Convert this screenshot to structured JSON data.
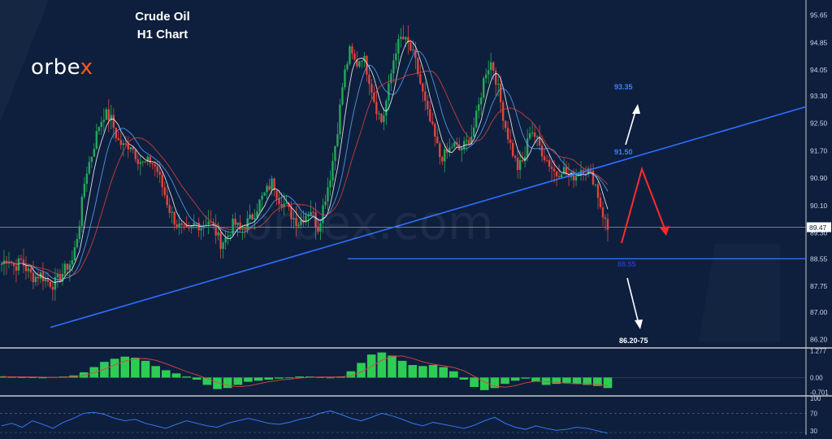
{
  "header": {
    "title_line1": "Crude Oil",
    "title_line2": "H1 Chart",
    "brand_prefix": "orbe",
    "brand_x": "x",
    "watermark": "orbex.com"
  },
  "annotations": {
    "target_up": "93.35",
    "resistance": "91.50",
    "support": "88.55",
    "target_down": "86.20-75"
  },
  "colors": {
    "background": "#0e1f3d",
    "bull": "#26a65b",
    "bear": "#e0443e",
    "trendline": "#2f6fff",
    "arrow_red": "#ff2b2b",
    "arrow_white": "#ffffff",
    "histogram": "#2ecc55",
    "oscillator": "#3a7fff"
  },
  "chart_data": {
    "type": "candlestick",
    "title": "Crude Oil H1 Chart",
    "ylim": [
      86.0,
      95.9
    ],
    "yticks": [
      "95.65",
      "94.85",
      "94.05",
      "93.30",
      "92.50",
      "91.70",
      "90.90",
      "90.10",
      "89.30",
      "88.55",
      "87.75",
      "87.00",
      "86.20"
    ],
    "last_price": "89.47",
    "candle_count": 250,
    "closes": [
      88.4,
      88.6,
      88.3,
      88.5,
      88.2,
      88.0,
      88.1,
      87.9,
      87.8,
      88.0,
      88.3,
      88.5,
      89.5,
      91.0,
      91.6,
      92.4,
      92.8,
      92.6,
      92.0,
      91.8,
      91.9,
      91.5,
      91.3,
      91.4,
      91.2,
      90.6,
      90.0,
      89.6,
      89.4,
      89.3,
      89.6,
      89.5,
      89.7,
      89.4,
      89.0,
      89.2,
      89.6,
      89.4,
      89.6,
      89.8,
      90.2,
      90.5,
      90.8,
      90.3,
      90.1,
      89.8,
      89.6,
      89.8,
      90.0,
      89.4,
      90.2,
      91.0,
      92.2,
      93.8,
      94.6,
      94.2,
      94.5,
      93.8,
      93.0,
      92.5,
      93.5,
      94.6,
      95.0,
      94.8,
      94.4,
      93.6,
      92.8,
      92.2,
      91.5,
      91.6,
      91.9,
      91.7,
      91.9,
      92.2,
      93.0,
      94.0,
      94.3,
      93.5,
      92.5,
      91.8,
      91.2,
      91.4,
      92.4,
      92.0,
      91.6,
      91.3,
      91.0,
      91.2,
      90.9,
      91.0,
      91.2,
      91.1,
      90.8,
      90.0,
      89.4
    ],
    "moving_averages": [
      {
        "color": "#ffffff"
      },
      {
        "color": "#5fa8ff"
      },
      {
        "color": "#e0443e"
      }
    ],
    "trendline": {
      "from": [
        0,
        86.55
      ],
      "to": [
        282,
        92.98
      ]
    },
    "support_level": 88.55,
    "macd": {
      "yticks": [
        "1.277",
        "0.00",
        "-0.701"
      ],
      "ylim": [
        -0.8,
        1.3
      ],
      "values": [
        0.05,
        0.03,
        0.02,
        0.01,
        0.0,
        0.02,
        0.05,
        0.1,
        0.25,
        0.5,
        0.75,
        0.9,
        1.0,
        0.95,
        0.8,
        0.55,
        0.35,
        0.2,
        0.05,
        -0.1,
        -0.35,
        -0.55,
        -0.5,
        -0.35,
        -0.2,
        -0.15,
        -0.1,
        -0.05,
        0.0,
        0.05,
        0.05,
        0.02,
        0.0,
        0.05,
        0.3,
        0.7,
        1.1,
        1.2,
        1.05,
        0.8,
        0.6,
        0.55,
        0.6,
        0.5,
        0.3,
        -0.1,
        -0.45,
        -0.6,
        -0.5,
        -0.3,
        -0.15,
        -0.05,
        -0.2,
        -0.35,
        -0.3,
        -0.25,
        -0.3,
        -0.35,
        -0.4,
        -0.5
      ]
    },
    "oscillator": {
      "yticks": [
        "100",
        "70",
        "30"
      ],
      "ylim": [
        30,
        100
      ],
      "values": [
        45,
        50,
        42,
        55,
        48,
        40,
        52,
        60,
        70,
        72,
        68,
        60,
        55,
        58,
        50,
        45,
        40,
        48,
        55,
        50,
        45,
        42,
        50,
        55,
        60,
        55,
        50,
        48,
        52,
        58,
        62,
        70,
        75,
        68,
        60,
        55,
        62,
        70,
        65,
        58,
        50,
        45,
        52,
        48,
        44,
        40,
        46,
        55,
        62,
        50,
        42,
        38,
        45,
        40,
        36,
        38,
        42,
        40,
        35,
        30
      ]
    }
  }
}
